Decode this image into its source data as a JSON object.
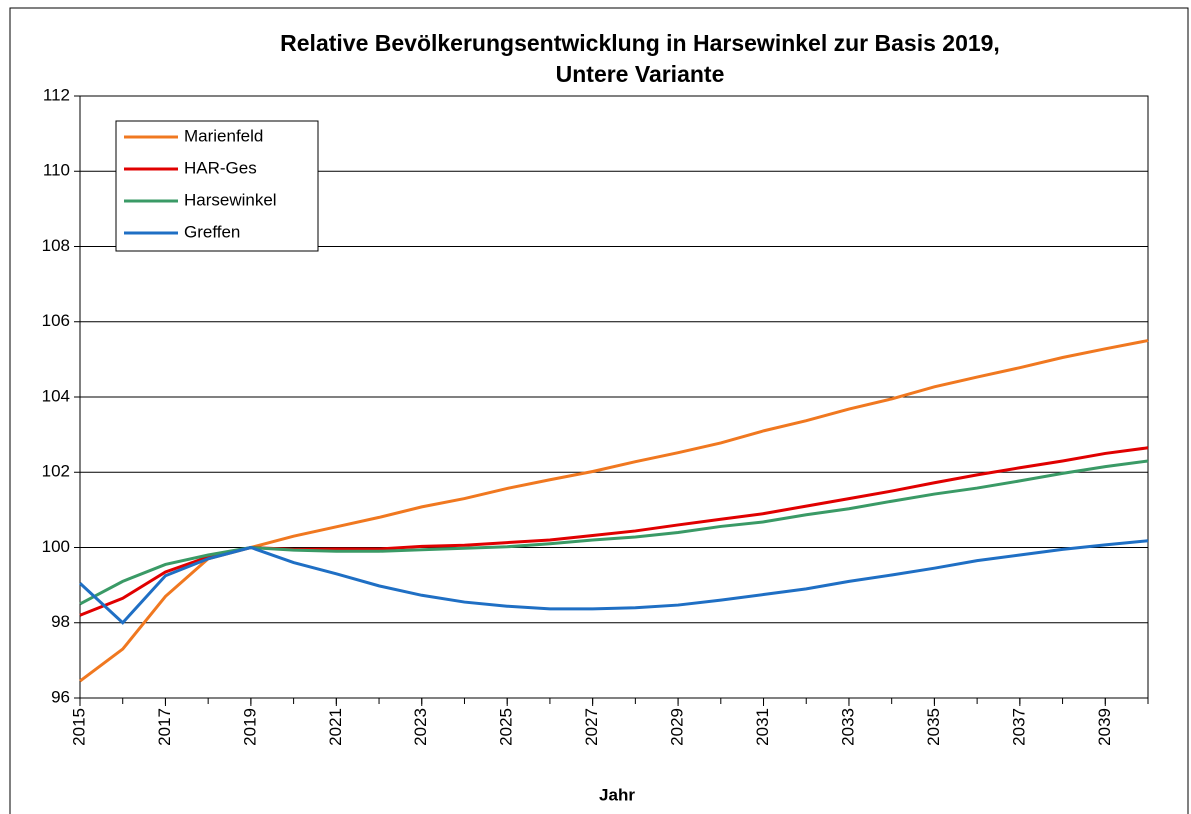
{
  "chart_data": {
    "type": "line",
    "title": [
      "Relative Bevölkerungsentwicklung in Harsewinkel zur Basis 2019,",
      "Untere Variante"
    ],
    "xlabel": "Jahr",
    "x": [
      2015,
      2016,
      2017,
      2018,
      2019,
      2020,
      2021,
      2022,
      2023,
      2024,
      2025,
      2026,
      2027,
      2028,
      2029,
      2030,
      2031,
      2032,
      2033,
      2034,
      2035,
      2036,
      2037,
      2038,
      2039,
      2040
    ],
    "series": [
      {
        "name": "Marienfeld",
        "color": "#f07820",
        "values": [
          96.45,
          97.3,
          98.7,
          99.7,
          100,
          100.3,
          100.55,
          100.8,
          101.08,
          101.3,
          101.57,
          101.8,
          102.02,
          102.28,
          102.52,
          102.78,
          103.1,
          103.37,
          103.68,
          103.95,
          104.27,
          104.53,
          104.78,
          105.05,
          105.28,
          105.5
        ]
      },
      {
        "name": "HAR-Ges",
        "color": "#e00000",
        "values": [
          98.2,
          98.65,
          99.35,
          99.75,
          100,
          99.95,
          99.96,
          99.96,
          100.03,
          100.06,
          100.13,
          100.2,
          100.32,
          100.44,
          100.6,
          100.75,
          100.9,
          101.1,
          101.3,
          101.5,
          101.72,
          101.93,
          102.12,
          102.3,
          102.5,
          102.65
        ]
      },
      {
        "name": "Harsewinkel",
        "color": "#3a9a66",
        "values": [
          98.5,
          99.1,
          99.55,
          99.8,
          100,
          99.93,
          99.9,
          99.9,
          99.94,
          99.98,
          100.02,
          100.1,
          100.2,
          100.28,
          100.4,
          100.56,
          100.68,
          100.87,
          101.03,
          101.23,
          101.42,
          101.58,
          101.77,
          101.97,
          102.15,
          102.3
        ]
      },
      {
        "name": "Greffen",
        "color": "#1f6fc4",
        "values": [
          99.05,
          98.0,
          99.25,
          99.7,
          100,
          99.6,
          99.3,
          98.98,
          98.73,
          98.55,
          98.44,
          98.37,
          98.37,
          98.4,
          98.47,
          98.6,
          98.75,
          98.9,
          99.1,
          99.27,
          99.45,
          99.65,
          99.8,
          99.95,
          100.07,
          100.18
        ]
      }
    ],
    "xlim": [
      2015,
      2040
    ],
    "xticks": [
      2015,
      2017,
      2019,
      2021,
      2023,
      2025,
      2027,
      2029,
      2031,
      2033,
      2035,
      2037,
      2039
    ],
    "ylim": [
      96,
      112
    ],
    "yticks": [
      96,
      98,
      100,
      102,
      104,
      106,
      108,
      110,
      112
    ],
    "grid": true,
    "legend": "upper left"
  }
}
